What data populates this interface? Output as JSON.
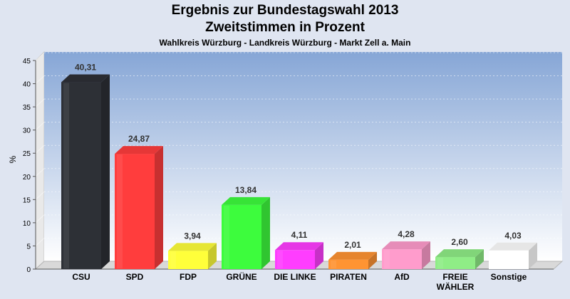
{
  "header": {
    "title": "Ergebnis zur Bundestagswahl 2013",
    "subtitle": "Zweitstimmen in Prozent",
    "caption": "Wahlkreis Würzburg - Landkreis Würzburg - Markt Zell a. Main"
  },
  "chart_data": {
    "type": "bar",
    "title": "Ergebnis zur Bundestagswahl 2013",
    "subtitle": "Zweitstimmen in Prozent",
    "caption": "Wahlkreis Würzburg - Landkreis Würzburg - Markt Zell a. Main",
    "ylabel": "%",
    "xlabel": "",
    "ylim": [
      0,
      45
    ],
    "yticks": [
      0,
      5,
      10,
      15,
      20,
      25,
      30,
      35,
      40,
      45
    ],
    "grid": true,
    "categories": [
      {
        "label": "CSU",
        "value": 40.31,
        "value_label": "40,31",
        "color": "#2d3036"
      },
      {
        "label": "SPD",
        "value": 24.87,
        "value_label": "24,87",
        "color": "#ff3d3d"
      },
      {
        "label": "FDP",
        "value": 3.94,
        "value_label": "3,94",
        "color": "#ffff3a"
      },
      {
        "label": "GRÜNE",
        "value": 13.84,
        "value_label": "13,84",
        "color": "#3dfc3d"
      },
      {
        "label": "DIE LINKE",
        "value": 4.11,
        "value_label": "4,11",
        "color": "#ff3dff"
      },
      {
        "label": "PIRATEN",
        "value": 2.01,
        "value_label": "2,01",
        "color": "#ff9433"
      },
      {
        "label": "AfD",
        "value": 4.28,
        "value_label": "4,28",
        "color": "#ff9ccc"
      },
      {
        "label": "FREIE WÄHLER",
        "value": 2.6,
        "value_label": "2,60",
        "color": "#8fed86"
      },
      {
        "label": "Sonstige",
        "value": 4.03,
        "value_label": "4,03",
        "color": "#ffffff"
      }
    ]
  }
}
